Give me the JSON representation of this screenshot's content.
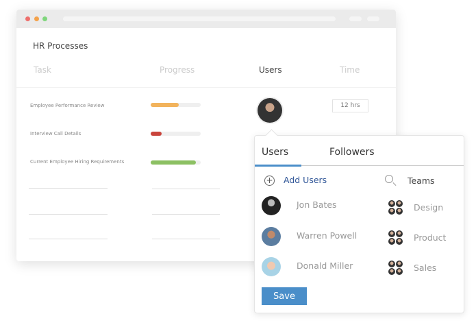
{
  "window": {
    "dots": [
      "#ee6f6c",
      "#f4a24b",
      "#7fd67c"
    ]
  },
  "page": {
    "title": "HR Processes"
  },
  "table": {
    "headers": {
      "task": "Task",
      "progress": "Progress",
      "users": "Users",
      "time": "Time"
    },
    "rows": [
      {
        "task": "Employee Performance Review",
        "progress": 56,
        "color": "#f2b35c",
        "time": "12 hrs"
      },
      {
        "task": "Interview Call Details",
        "progress": 22,
        "color": "#c9443c"
      },
      {
        "task": "Current Employee Hiring Requirements",
        "progress": 90,
        "color": "#8cc063"
      }
    ]
  },
  "popup": {
    "tabs": [
      "Users",
      "Followers"
    ],
    "add_users": "Add Users",
    "teams_label": "Teams",
    "users": [
      "Jon Bates",
      "Warren Powell",
      "Donald Miller"
    ],
    "teams": [
      "Design",
      "Product",
      "Sales"
    ],
    "save": "Save"
  }
}
